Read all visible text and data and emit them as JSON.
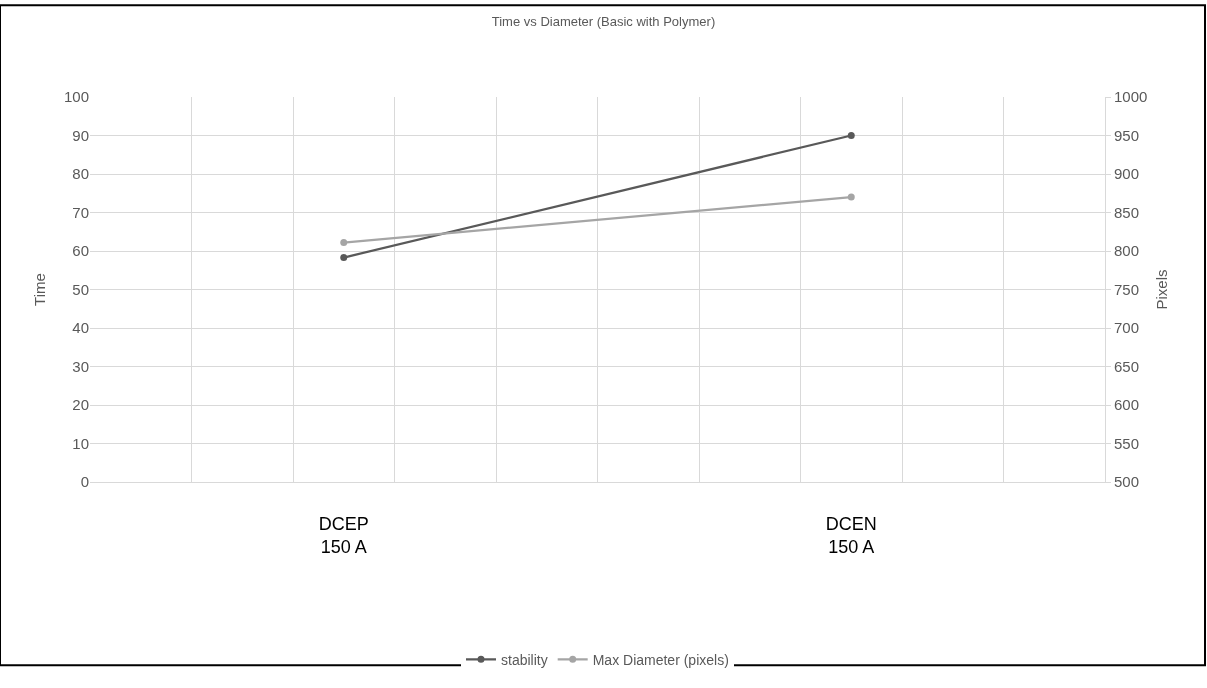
{
  "chart_data": {
    "type": "line",
    "title": "Time vs Diameter (Basic with Polymer)",
    "ylabel": "Time",
    "y2label": "Pixels",
    "categories": [
      "DCEP\n150 A",
      "DCEN\n150 A"
    ],
    "series": [
      {
        "name": "stability",
        "color": "#595959",
        "values": [
          58.3,
          90
        ]
      },
      {
        "name": "Max Diameter (pixels)",
        "color": "#a5a5a5",
        "values": [
          811,
          870
        ],
        "axis": "y2"
      }
    ],
    "ylim": [
      0,
      100
    ],
    "yticks": [
      0,
      10,
      20,
      30,
      40,
      50,
      60,
      70,
      80,
      90,
      100
    ],
    "y2lim": [
      500,
      1000
    ],
    "y2ticks": [
      500,
      550,
      600,
      650,
      700,
      750,
      800,
      850,
      900,
      950,
      1000
    ],
    "grid": true,
    "legend": "bottom",
    "marker": "circle",
    "line_style": "solid"
  }
}
